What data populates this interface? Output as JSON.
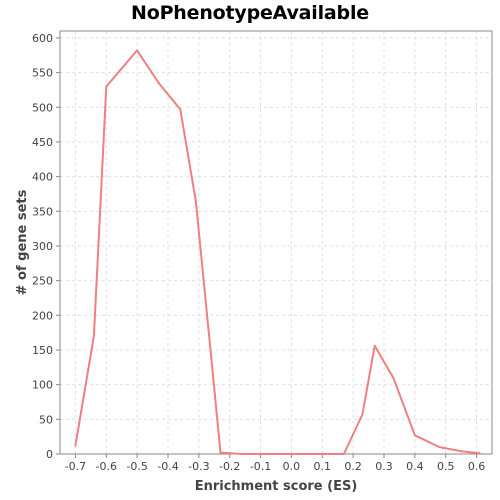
{
  "chart_data": {
    "type": "line",
    "title": "NoPhenotypeAvailable",
    "xlabel": "Enrichment score (ES)",
    "ylabel": "# of gene sets",
    "xlim": [
      -0.75,
      0.65
    ],
    "ylim": [
      0,
      610
    ],
    "x_ticks": [
      -0.7,
      -0.6,
      -0.5,
      -0.4,
      -0.3,
      -0.2,
      -0.1,
      0.0,
      0.1,
      0.2,
      0.3,
      0.4,
      0.5,
      0.6
    ],
    "x_tick_labels": [
      "-0.7",
      "-0.6",
      "-0.5",
      "-0.4",
      "-0.3",
      "-0.2",
      "-0.1",
      "0.0",
      "0.1",
      "0.2",
      "0.3",
      "0.4",
      "0.5",
      "0.6"
    ],
    "y_ticks": [
      0,
      50,
      100,
      150,
      200,
      250,
      300,
      350,
      400,
      450,
      500,
      550,
      600
    ],
    "y_tick_labels": [
      "0",
      "50",
      "100",
      "150",
      "200",
      "250",
      "300",
      "350",
      "400",
      "450",
      "500",
      "550",
      "600"
    ],
    "grid": true,
    "colors": {
      "line": "#f08080",
      "grid": "#e0e0e0",
      "axis": "#888888"
    },
    "series": [
      {
        "x": [
          -0.7,
          -0.64,
          -0.6,
          -0.5,
          -0.43,
          -0.36,
          -0.31,
          -0.26,
          -0.23,
          -0.16,
          -0.13,
          0.13,
          0.17,
          0.23,
          0.27,
          0.33,
          0.4,
          0.48,
          0.55,
          0.61
        ],
        "values": [
          12,
          170,
          530,
          582,
          535,
          497,
          365,
          140,
          2,
          0,
          0,
          0,
          0,
          57,
          156,
          110,
          27,
          10,
          4,
          1
        ]
      }
    ]
  }
}
